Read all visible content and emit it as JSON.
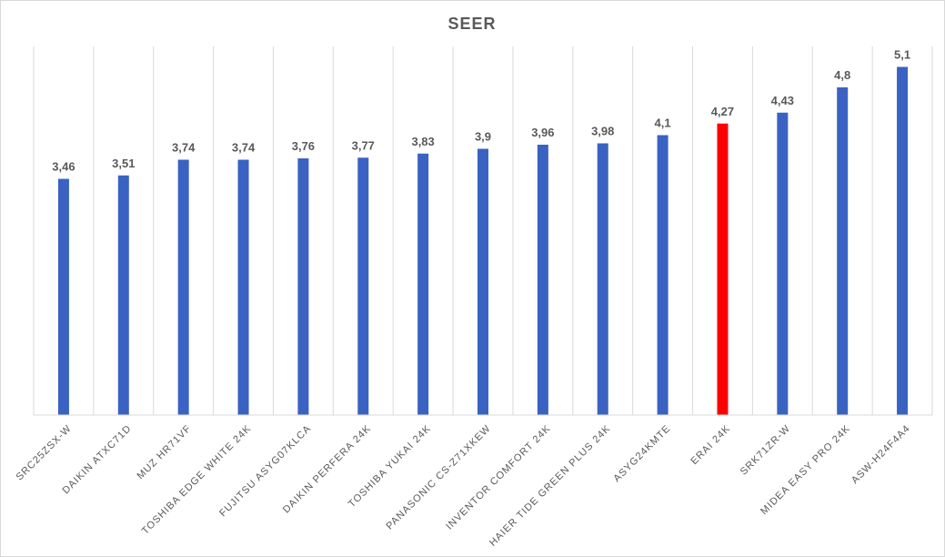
{
  "chart_data": {
    "type": "bar",
    "title": "SEER",
    "xlabel": "",
    "ylabel": "",
    "ylim": [
      0,
      5.4
    ],
    "grid": "vertical category separators",
    "legend": "none",
    "categories": [
      "SRC25ZSX-W",
      "DAIKIN ATXC71D",
      "MUZ HR71VF",
      "TOSHIBA EDGE WHITE 24K",
      "FUJITSU ASYG07KLCA",
      "DAIKIN PERFERA 24K",
      "TOSHIBA YUKAI 24K",
      "PANASONIC CS-Z71XKEW",
      "INVENTOR COMFORT 24K",
      "HAIER TIDE GREEN PLUS 24K",
      "ASYG24KMTE",
      "ERAI 24K",
      "SRK71ZR-W",
      "MIDEA EASY PRO 24K",
      "ASW-H24F4A4"
    ],
    "values": [
      3.46,
      3.51,
      3.74,
      3.74,
      3.76,
      3.77,
      3.83,
      3.9,
      3.96,
      3.98,
      4.1,
      4.27,
      4.43,
      4.8,
      5.1
    ],
    "value_labels": [
      "3,46",
      "3,51",
      "3,74",
      "3,74",
      "3,76",
      "3,77",
      "3,83",
      "3,9",
      "3,96",
      "3,98",
      "4,1",
      "4,27",
      "4,43",
      "4,8",
      "5,1"
    ],
    "colors": {
      "default_bar": "#3a62c2",
      "highlight_bar": "#ff0000",
      "highlight_category": "ERAI 24K"
    }
  }
}
